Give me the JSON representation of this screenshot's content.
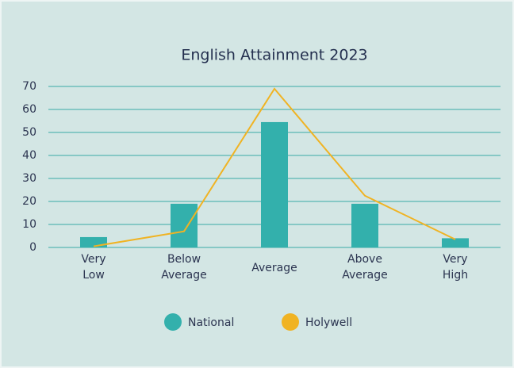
{
  "chart_data": {
    "type": "bar",
    "title": "English Attainment 2023",
    "categories": [
      "Very Low",
      "Below Average",
      "Average",
      "Above Average",
      "Very High"
    ],
    "series": [
      {
        "name": "National",
        "type": "bar",
        "color": "#33b0ac",
        "values": [
          4.5,
          19,
          54.5,
          19,
          4
        ]
      },
      {
        "name": "Holywell",
        "type": "line",
        "color": "#f0b323",
        "values": [
          0.5,
          7,
          69,
          22.5,
          3.5
        ]
      }
    ],
    "ylim": [
      0,
      70
    ],
    "yticks": [
      0,
      10,
      20,
      30,
      40,
      50,
      60,
      70
    ],
    "grid": true,
    "legend": "bottom"
  }
}
